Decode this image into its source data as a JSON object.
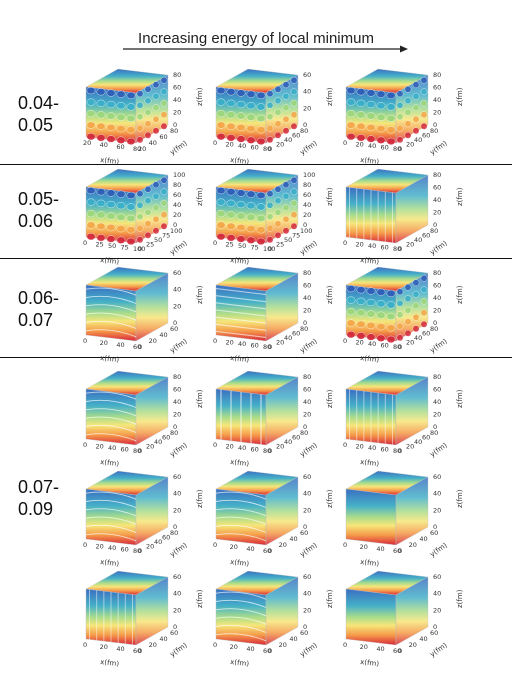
{
  "header": {
    "title": "Increasing energy of local minimum"
  },
  "axis_labels": {
    "x": "x(fm)",
    "y": "y(fm)",
    "z": "z(fm)"
  },
  "groups": [
    {
      "label": "0.04-\n0.05",
      "rows": [
        0
      ]
    },
    {
      "label": "0.05-\n0.06",
      "rows": [
        1
      ]
    },
    {
      "label": "0.06-\n0.07",
      "rows": [
        2
      ]
    },
    {
      "label": "0.07-\n0.09",
      "rows": [
        3,
        4,
        5
      ]
    }
  ],
  "rows": [
    {
      "panels": [
        {
          "pattern": "spheres",
          "x_ticks": [
            "20",
            "40",
            "60",
            "80"
          ],
          "y_ticks": [
            "20",
            "40",
            "60",
            "80"
          ],
          "z_ticks": [
            "0",
            "20",
            "40",
            "60",
            "80"
          ]
        },
        {
          "pattern": "spheres",
          "x_ticks": [
            "0",
            "20",
            "40",
            "60",
            "80"
          ],
          "y_ticks": [
            "0",
            "20",
            "40",
            "60",
            "80"
          ],
          "z_ticks": [
            "0",
            "20",
            "40",
            "60"
          ]
        },
        {
          "pattern": "spheres",
          "x_ticks": [
            "0",
            "20",
            "40",
            "60",
            "80"
          ],
          "y_ticks": [
            "0",
            "20",
            "40",
            "60",
            "80"
          ],
          "z_ticks": [
            "0",
            "20",
            "40",
            "60",
            "80"
          ]
        }
      ]
    },
    {
      "panels": [
        {
          "pattern": "spheres",
          "x_ticks": [
            "0",
            "25",
            "50",
            "75",
            "100"
          ],
          "y_ticks": [
            "0",
            "25",
            "50",
            "75",
            "100"
          ],
          "z_ticks": [
            "0",
            "20",
            "40",
            "60",
            "80",
            "100"
          ]
        },
        {
          "pattern": "spheres",
          "x_ticks": [
            "0",
            "25",
            "50",
            "75",
            "100"
          ],
          "y_ticks": [
            "0",
            "25",
            "50",
            "75",
            "100"
          ],
          "z_ticks": [
            "0",
            "20",
            "40",
            "60",
            "80",
            "100"
          ]
        },
        {
          "pattern": "cylinders",
          "x_ticks": [
            "0",
            "20",
            "40",
            "60",
            "80"
          ],
          "y_ticks": [
            "0",
            "20",
            "40",
            "60",
            "80"
          ],
          "z_ticks": [
            "0",
            "20",
            "40",
            "60",
            "80"
          ]
        }
      ]
    },
    {
      "panels": [
        {
          "pattern": "slabs",
          "x_ticks": [
            "0",
            "20",
            "40",
            "60"
          ],
          "y_ticks": [
            "0",
            "20",
            "40",
            "60"
          ],
          "z_ticks": [
            "0",
            "20",
            "40",
            "60"
          ]
        },
        {
          "pattern": "rods",
          "x_ticks": [
            "0",
            "20",
            "40",
            "60",
            "80"
          ],
          "y_ticks": [
            "0",
            "20",
            "40",
            "60",
            "80"
          ],
          "z_ticks": [
            "0",
            "20",
            "40",
            "60",
            "80"
          ]
        },
        {
          "pattern": "spheres",
          "x_ticks": [
            "0",
            "20",
            "40",
            "60",
            "80"
          ],
          "y_ticks": [
            "0",
            "20",
            "40",
            "60",
            "80"
          ],
          "z_ticks": [
            "0",
            "20",
            "40",
            "60",
            "80"
          ]
        }
      ]
    },
    {
      "panels": [
        {
          "pattern": "slabs",
          "x_ticks": [
            "0",
            "20",
            "40",
            "60",
            "80"
          ],
          "y_ticks": [
            "0",
            "20",
            "40",
            "60",
            "80"
          ],
          "z_ticks": [
            "0",
            "20",
            "40",
            "60",
            "80"
          ]
        },
        {
          "pattern": "walls",
          "x_ticks": [
            "0",
            "20",
            "40",
            "60",
            "80"
          ],
          "y_ticks": [
            "0",
            "20",
            "40",
            "60",
            "80"
          ],
          "z_ticks": [
            "0",
            "20",
            "40",
            "60",
            "80"
          ]
        },
        {
          "pattern": "cylinders",
          "x_ticks": [
            "0",
            "20",
            "40",
            "60",
            "80"
          ],
          "y_ticks": [
            "0",
            "20",
            "40",
            "60",
            "80"
          ],
          "z_ticks": [
            "0",
            "20",
            "40",
            "60",
            "80"
          ]
        }
      ]
    },
    {
      "panels": [
        {
          "pattern": "slabs",
          "x_ticks": [
            "0",
            "20",
            "40",
            "60",
            "80"
          ],
          "y_ticks": [
            "0",
            "20",
            "40",
            "60",
            "80"
          ],
          "z_ticks": [
            "0",
            "20",
            "40",
            "60"
          ]
        },
        {
          "pattern": "slabs",
          "x_ticks": [
            "0",
            "20",
            "40",
            "60"
          ],
          "y_ticks": [
            "0",
            "20",
            "40",
            "60"
          ],
          "z_ticks": [
            "0",
            "20",
            "40",
            "60"
          ]
        },
        {
          "pattern": "uniform",
          "x_ticks": [
            "0",
            "20",
            "40",
            "60"
          ],
          "y_ticks": [
            "0",
            "20",
            "40",
            "60"
          ],
          "z_ticks": [
            "0",
            "20",
            "40",
            "60"
          ]
        }
      ]
    },
    {
      "panels": [
        {
          "pattern": "cylinders",
          "x_ticks": [
            "0",
            "20",
            "40",
            "60"
          ],
          "y_ticks": [
            "0",
            "20",
            "40",
            "60"
          ],
          "z_ticks": [
            "0",
            "20",
            "40",
            "60"
          ]
        },
        {
          "pattern": "slabs",
          "x_ticks": [
            "0",
            "20",
            "40",
            "60"
          ],
          "y_ticks": [
            "0",
            "20",
            "40",
            "60"
          ],
          "z_ticks": [
            "0",
            "20",
            "40",
            "60"
          ]
        },
        {
          "pattern": "uniform",
          "x_ticks": [
            "0",
            "20",
            "40",
            "60"
          ],
          "y_ticks": [
            "0",
            "20",
            "40",
            "60"
          ],
          "z_ticks": [
            "0",
            "20",
            "40",
            "60"
          ]
        }
      ]
    }
  ]
}
